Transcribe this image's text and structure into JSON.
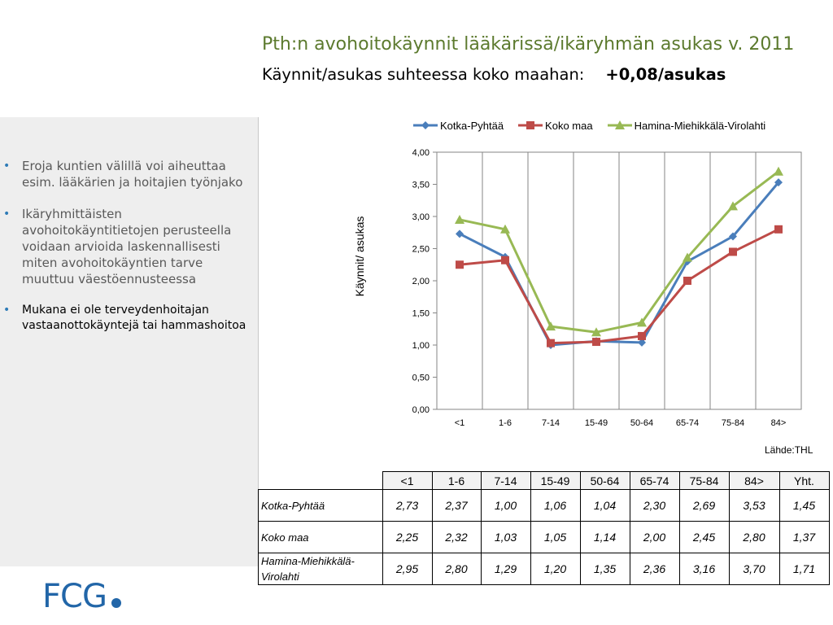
{
  "header": {
    "title": "Pth:n avohoitokäynnit lääkärissä/ikäryhmän asukas v. 2011",
    "subtitle_label": "Käynnit/asukas suhteessa koko maahan:",
    "subtitle_value": "+0,08/asukas"
  },
  "sidebar": {
    "bullets": [
      "Eroja kuntien välillä voi aiheuttaa esim. lääkärien ja hoitajien työnjako",
      "Ikäryhmittäisten avohoitokäyntitietojen perusteella voidaan arvioida laskennallisesti miten avohoitokäyntien tarve muuttuu väestöennusteessa",
      "Mukana ei ole terveydenhoitajan vastaanottokäyntejä tai hammashoitoa"
    ]
  },
  "chart_data": {
    "type": "line",
    "title": "",
    "xlabel": "",
    "ylabel": "Käynnit/ asukas",
    "categories": [
      "<1",
      "1-6",
      "7-14",
      "15-49",
      "50-64",
      "65-74",
      "75-84",
      "84>"
    ],
    "ylim": [
      0,
      4
    ],
    "yticks": [
      "0,00",
      "0,50",
      "1,00",
      "1,50",
      "2,00",
      "2,50",
      "3,00",
      "3,50",
      "4,00"
    ],
    "grid": "vertical",
    "legend_position": "top",
    "series": [
      {
        "name": "Kotka-Pyhtää",
        "color": "#4a7ebb",
        "marker": "diamond",
        "values": [
          2.73,
          2.37,
          1.0,
          1.06,
          1.04,
          2.3,
          2.69,
          3.53
        ]
      },
      {
        "name": "Koko maa",
        "color": "#be4b48",
        "marker": "square",
        "values": [
          2.25,
          2.32,
          1.03,
          1.05,
          1.14,
          2.0,
          2.45,
          2.8
        ]
      },
      {
        "name": "Hamina-Miehikkälä-Virolahti",
        "color": "#98b954",
        "marker": "triangle",
        "values": [
          2.95,
          2.8,
          1.29,
          1.2,
          1.35,
          2.36,
          3.16,
          3.7
        ]
      }
    ]
  },
  "source": "Lähde:THL",
  "table": {
    "headers": [
      "<1",
      "1-6",
      "7-14",
      "15-49",
      "50-64",
      "65-74",
      "75-84",
      "84>",
      "Yht."
    ],
    "rows": [
      {
        "label": "Kotka-Pyhtää",
        "values": [
          "2,73",
          "2,37",
          "1,00",
          "1,06",
          "1,04",
          "2,30",
          "2,69",
          "3,53",
          "1,45"
        ]
      },
      {
        "label": "Koko maa",
        "values": [
          "2,25",
          "2,32",
          "1,03",
          "1,05",
          "1,14",
          "2,00",
          "2,45",
          "2,80",
          "1,37"
        ]
      },
      {
        "label": "Hamina-Miehikkälä-Virolahti",
        "values": [
          "2,95",
          "2,80",
          "1,29",
          "1,20",
          "1,35",
          "2,36",
          "3,16",
          "3,70",
          "1,71"
        ]
      }
    ]
  },
  "logo": {
    "text": "FCG"
  }
}
